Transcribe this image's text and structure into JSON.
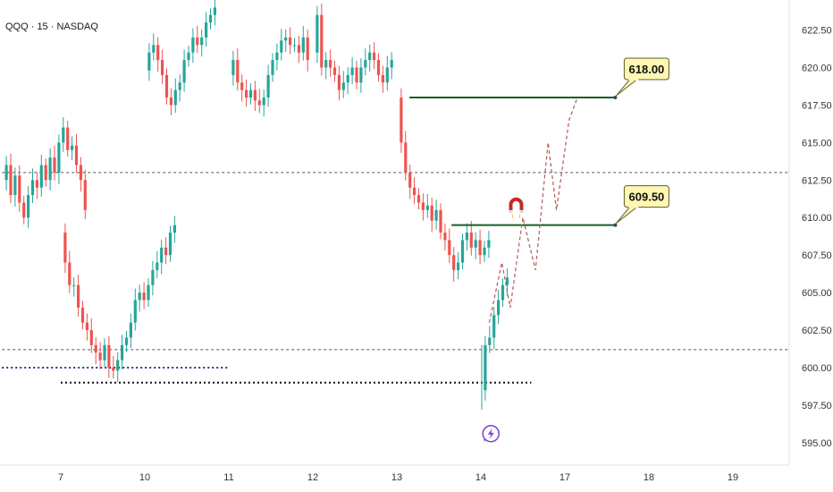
{
  "header": {
    "title": "QQQ · 15 · NASDAQ"
  },
  "colors": {
    "up": "#26a69a",
    "down": "#ef5350",
    "level_line": "#1b5e20",
    "projection": "#b05a5a",
    "dotted_black": "#111111",
    "dotted_blue": "#1e3a8a",
    "callout_bg": "#fff7b3",
    "callout_border": "#5c5c2e",
    "magnet": "#c62828",
    "bolt": "#7b3fd1"
  },
  "chart_data": {
    "type": "candlestick",
    "ylim": [
      593.5,
      624.5
    ],
    "xlim": [
      6.3,
      20.0
    ],
    "yticks": [
      "595.00",
      "597.50",
      "600.00",
      "602.50",
      "605.00",
      "607.50",
      "610.00",
      "612.50",
      "615.00",
      "617.50",
      "620.00",
      "622.50"
    ],
    "xticks": [
      {
        "x": 7,
        "label": "7"
      },
      {
        "x": 8,
        "label": "10"
      },
      {
        "x": 9,
        "label": "11"
      },
      {
        "x": 10,
        "label": "12"
      },
      {
        "x": 11,
        "label": "13"
      },
      {
        "x": 12,
        "label": "14"
      },
      {
        "x": 13,
        "label": "17"
      },
      {
        "x": 14,
        "label": "18"
      },
      {
        "x": 15,
        "label": "19"
      }
    ],
    "sessions": [
      {
        "start_x": 6.3,
        "points": [
          612.5,
          613.5,
          611.5,
          612.8,
          611.0,
          610.0,
          611.5,
          612.5,
          612.0,
          613.5,
          612.5,
          614.0,
          613.0,
          615.0,
          616.0,
          614.5,
          614.8,
          613.5,
          612.5,
          610.5
        ]
      },
      {
        "start_x": 7.0,
        "points": [
          609.0,
          607.0,
          605.5,
          605.5,
          604.0,
          603.0,
          602.5,
          601.5,
          601.0,
          600.5,
          601.5,
          600.0,
          599.8,
          600.5,
          601.5,
          602.0,
          603.0,
          604.5,
          605.0,
          604.5,
          605.5,
          606.5,
          607.0,
          608.0,
          607.5,
          609.0,
          609.5
        ]
      },
      {
        "start_x": 8.0,
        "points": [
          619.8,
          621.0,
          621.5,
          620.5,
          619.5,
          618.0,
          617.5,
          618.5,
          619.0,
          620.5,
          621.0,
          622.0,
          621.5,
          622.0,
          623.0,
          623.5,
          624.0
        ]
      },
      {
        "start_x": 9.0,
        "points": [
          619.5,
          620.5,
          619.0,
          618.5,
          618.0,
          618.5,
          617.8,
          617.5,
          618.0,
          619.5,
          620.5,
          621.0,
          621.8,
          622.0,
          621.5,
          621.5,
          621.0,
          622.0,
          620.5
        ]
      },
      {
        "start_x": 10.0,
        "points": [
          621.0,
          623.5,
          620.0,
          620.5,
          620.0,
          619.5,
          618.5,
          619.0,
          619.5,
          620.0,
          619.0,
          620.0,
          620.5,
          621.0,
          620.5,
          619.5,
          619.0,
          620.0,
          620.5
        ]
      },
      {
        "start_x": 11.0,
        "points": [
          618.0,
          615.0,
          613.0,
          612.0,
          611.5,
          611.0,
          610.5,
          610.8,
          609.8,
          610.5,
          609.0,
          608.5,
          607.5,
          606.5,
          607.0,
          608.5,
          609.0,
          608.0,
          608.5,
          607.5,
          608.0,
          608.5
        ]
      },
      {
        "start_x": 12.0,
        "points": [
          598.5,
          601.5,
          602.0,
          603.5,
          604.5,
          605.5,
          606.0
        ]
      }
    ],
    "reference_lines": [
      {
        "kind": "dashed",
        "y": 613.0,
        "x1": 6.3,
        "x2": 15.7
      },
      {
        "kind": "dashed",
        "y": 601.2,
        "x1": 6.3,
        "x2": 15.7
      },
      {
        "kind": "dotted",
        "y": 599.0,
        "x1": 7.0,
        "x2": 12.6
      },
      {
        "kind": "dotted-blue",
        "y": 600.0,
        "x1": 6.3,
        "x2": 9.0
      }
    ],
    "levels": [
      {
        "y": 618.0,
        "x1": 11.15,
        "x2": 13.6,
        "label": "618.00"
      },
      {
        "y": 609.5,
        "x1": 11.65,
        "x2": 13.6,
        "label": "609.50"
      }
    ],
    "projection": {
      "x": [
        12.1,
        12.25,
        12.35,
        12.5,
        12.65,
        12.8,
        12.9,
        13.05,
        13.15
      ],
      "y": [
        603.0,
        607.0,
        604.0,
        610.0,
        606.5,
        615.0,
        610.5,
        616.5,
        618.0
      ]
    },
    "markers": {
      "magnet": {
        "x": 12.42,
        "y": 610.8
      },
      "bolt": {
        "x": 12.12,
        "y": 595.6
      }
    }
  }
}
